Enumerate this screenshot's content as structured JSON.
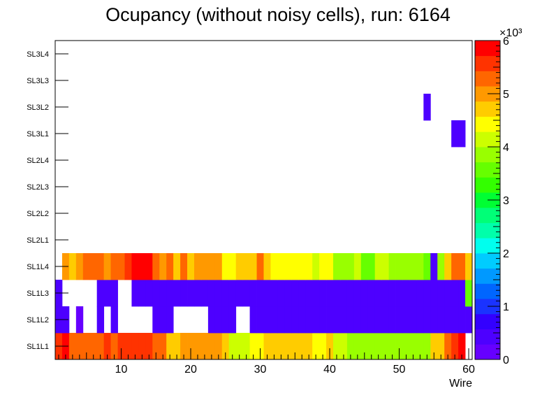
{
  "chart_data": {
    "type": "heatmap",
    "title": "Ocupancy (without noisy cells), run: 6164",
    "xlabel": "Wire",
    "xlim": [
      0.5,
      60.5
    ],
    "x_ticks": [
      10,
      20,
      30,
      40,
      50,
      60
    ],
    "y_categories": [
      "SL1L1",
      "SL1L2",
      "SL1L3",
      "SL1L4",
      "SL2L1",
      "SL2L2",
      "SL2L3",
      "SL2L4",
      "SL3L1",
      "SL3L2",
      "SL3L3",
      "SL3L4"
    ],
    "z_range": [
      0,
      6000
    ],
    "z_ticks": [
      0,
      1,
      2,
      3,
      4,
      5,
      6
    ],
    "z_multiplier": "×10³",
    "cells": {
      "SL1L1": [
        5700,
        5800,
        5300,
        5300,
        5200,
        5200,
        5300,
        5500,
        5200,
        5500,
        5600,
        5600,
        5700,
        5700,
        5300,
        5300,
        4800,
        4700,
        4900,
        4900,
        4900,
        4900,
        4900,
        4900,
        4600,
        4200,
        4000,
        4100,
        4400,
        4400,
        4600,
        4600,
        4600,
        4600,
        4600,
        4600,
        4600,
        4500,
        4400,
        4800,
        4100,
        4100,
        3900,
        3900,
        3900,
        3900,
        3900,
        3900,
        3900,
        3900,
        3900,
        3900,
        3900,
        3900,
        4800,
        4700,
        5400,
        5700,
        6000,
        0
      ],
      "SL1L2": [
        400,
        400,
        0,
        200,
        0,
        0,
        300,
        0,
        400,
        0,
        0,
        0,
        0,
        0,
        400,
        400,
        400,
        0,
        0,
        0,
        0,
        0,
        400,
        400,
        400,
        400,
        0,
        0,
        400,
        400,
        400,
        400,
        400,
        400,
        400,
        400,
        400,
        400,
        400,
        400,
        400,
        400,
        400,
        400,
        400,
        400,
        400,
        400,
        400,
        400,
        400,
        400,
        400,
        400,
        400,
        400,
        400,
        400,
        400,
        400
      ],
      "SL1L3": [
        400,
        0,
        0,
        0,
        0,
        0,
        400,
        400,
        400,
        0,
        0,
        400,
        400,
        400,
        400,
        400,
        400,
        400,
        400,
        400,
        400,
        400,
        400,
        400,
        400,
        400,
        400,
        400,
        400,
        400,
        400,
        400,
        400,
        400,
        400,
        400,
        400,
        400,
        400,
        400,
        400,
        400,
        400,
        400,
        400,
        400,
        400,
        400,
        400,
        400,
        400,
        400,
        400,
        400,
        400,
        400,
        400,
        400,
        400,
        3500
      ],
      "SL1L4": [
        0,
        5100,
        4700,
        4900,
        5300,
        5300,
        5300,
        4900,
        5200,
        5200,
        5600,
        5800,
        5800,
        5800,
        5300,
        5100,
        5400,
        4800,
        5300,
        4600,
        5100,
        5100,
        5100,
        5100,
        4400,
        4400,
        4800,
        4800,
        4800,
        5200,
        4600,
        4500,
        4500,
        4500,
        4500,
        4500,
        4300,
        4100,
        4300,
        4300,
        3900,
        3900,
        3900,
        4100,
        3700,
        3700,
        4000,
        4000,
        3800,
        3800,
        3800,
        3800,
        3800,
        3700,
        500,
        3800,
        4800,
        5300,
        5300,
        4800
      ],
      "SL2L1": [],
      "SL2L2": [],
      "SL2L3": [],
      "SL2L4": [],
      "SL3L1": [
        0,
        0,
        0,
        0,
        0,
        0,
        0,
        0,
        0,
        0,
        0,
        0,
        0,
        0,
        0,
        0,
        0,
        0,
        0,
        0,
        0,
        0,
        0,
        0,
        0,
        0,
        0,
        0,
        0,
        0,
        0,
        0,
        0,
        0,
        0,
        0,
        0,
        0,
        0,
        0,
        0,
        0,
        0,
        0,
        0,
        0,
        0,
        0,
        0,
        0,
        0,
        0,
        0,
        0,
        0,
        0,
        0,
        300,
        300,
        0
      ],
      "SL3L2": [
        0,
        0,
        0,
        0,
        0,
        0,
        0,
        0,
        0,
        0,
        0,
        0,
        0,
        0,
        0,
        0,
        0,
        0,
        0,
        0,
        0,
        0,
        0,
        0,
        0,
        0,
        0,
        0,
        0,
        0,
        0,
        0,
        0,
        0,
        0,
        0,
        0,
        0,
        0,
        0,
        0,
        0,
        0,
        0,
        0,
        0,
        0,
        0,
        0,
        0,
        0,
        0,
        0,
        300,
        0,
        0,
        0,
        0,
        0,
        0
      ],
      "SL3L3": [],
      "SL3L4": []
    }
  },
  "colors": {
    "palette": [
      "#6600ff",
      "#4d00ff",
      "#3300ff",
      "#1a33ff",
      "#0066ff",
      "#0099ff",
      "#00ccff",
      "#00ffee",
      "#00ffaa",
      "#00ff77",
      "#00ff33",
      "#33ff00",
      "#66ff00",
      "#99ff00",
      "#ccff00",
      "#ffff00",
      "#ffcc00",
      "#ff9900",
      "#ff6600",
      "#ff3300",
      "#ff0000"
    ]
  }
}
